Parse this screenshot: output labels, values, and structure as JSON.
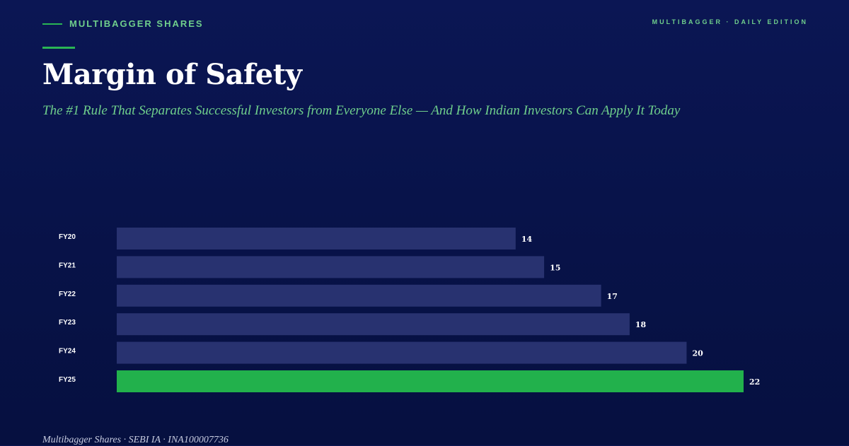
{
  "header": {
    "brand": "MULTIBAGGER SHARES",
    "edition": "MULTIBAGGER · DAILY EDITION",
    "title": "Margin of Safety",
    "subtitle": "The #1 Rule That Separates Successful Investors from Everyone Else — And How Indian Investors Can Apply It Today"
  },
  "footer": {
    "text": "Multibagger Shares · SEBI IA · INA100007736"
  },
  "colors": {
    "background": "#0a1550",
    "accent": "#2ab554",
    "bar": "#283270",
    "bar_highlight": "#22b14c",
    "accent_text": "#6fcf8c"
  },
  "chart_data": {
    "type": "bar",
    "orientation": "horizontal",
    "categories": [
      "FY20",
      "FY21",
      "FY22",
      "FY23",
      "FY24",
      "FY25"
    ],
    "values": [
      14,
      15,
      17,
      18,
      20,
      22
    ],
    "highlight_index": 5,
    "xlim": [
      0,
      22
    ],
    "grid": false,
    "legend": "none"
  }
}
